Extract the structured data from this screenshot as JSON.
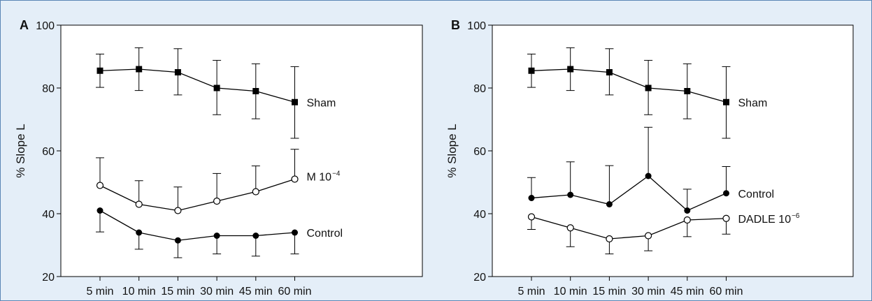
{
  "chart_data": [
    {
      "type": "line",
      "panel_label": "A",
      "ylabel": "% Slope L",
      "ylim": [
        20,
        100
      ],
      "yticks": [
        20,
        40,
        60,
        80,
        100
      ],
      "categories": [
        "5 min",
        "10 min",
        "15 min",
        "30 min",
        "45 min",
        "60 min"
      ],
      "series": [
        {
          "name": "Sham",
          "name_sup": "",
          "marker": "square-filled",
          "values": [
            85.5,
            86,
            85,
            80,
            79,
            75.5
          ],
          "err_up": [
            5.3,
            6.8,
            7.5,
            8.8,
            8.7,
            11.3
          ],
          "err_down": [
            5.3,
            6.8,
            7.2,
            8.5,
            8.8,
            11.5
          ]
        },
        {
          "name": "M 10",
          "name_sup": "−4",
          "marker": "circle-open",
          "values": [
            49,
            43,
            41,
            44,
            47,
            51
          ],
          "err_up": [
            8.8,
            7.5,
            7.5,
            8.8,
            8.2,
            9.5
          ],
          "err_down": [
            0,
            0,
            0,
            0,
            0,
            0
          ]
        },
        {
          "name": "Control",
          "name_sup": "",
          "marker": "circle-filled",
          "values": [
            41,
            34,
            31.5,
            33,
            33,
            34
          ],
          "err_up": [
            0,
            0,
            0,
            0,
            0,
            0
          ],
          "err_down": [
            6.8,
            5.3,
            5.5,
            5.8,
            6.5,
            6.8
          ]
        }
      ]
    },
    {
      "type": "line",
      "panel_label": "B",
      "ylabel": "% Slope L",
      "ylim": [
        20,
        100
      ],
      "yticks": [
        20,
        40,
        60,
        80,
        100
      ],
      "categories": [
        "5 min",
        "10 min",
        "15 min",
        "30 min",
        "45 min",
        "60 min"
      ],
      "series": [
        {
          "name": "Sham",
          "name_sup": "",
          "marker": "square-filled",
          "values": [
            85.5,
            86,
            85,
            80,
            79,
            75.5
          ],
          "err_up": [
            5.3,
            6.8,
            7.5,
            8.8,
            8.7,
            11.3
          ],
          "err_down": [
            5.3,
            6.8,
            7.2,
            8.5,
            8.8,
            11.5
          ]
        },
        {
          "name": "Control",
          "name_sup": "",
          "marker": "circle-filled",
          "values": [
            45,
            46,
            43,
            52,
            41,
            46.5
          ],
          "err_up": [
            6.5,
            10.5,
            12.3,
            15.5,
            6.8,
            8.5
          ],
          "err_down": [
            0,
            0,
            0,
            0,
            0,
            0
          ]
        },
        {
          "name": "DADLE 10",
          "name_sup": "−6",
          "marker": "circle-open",
          "values": [
            39,
            35.5,
            32,
            33,
            38,
            38.5
          ],
          "err_up": [
            0,
            0,
            0,
            0,
            0,
            0
          ],
          "err_down": [
            4,
            6,
            4.8,
            4.8,
            5.3,
            5
          ]
        }
      ]
    }
  ]
}
